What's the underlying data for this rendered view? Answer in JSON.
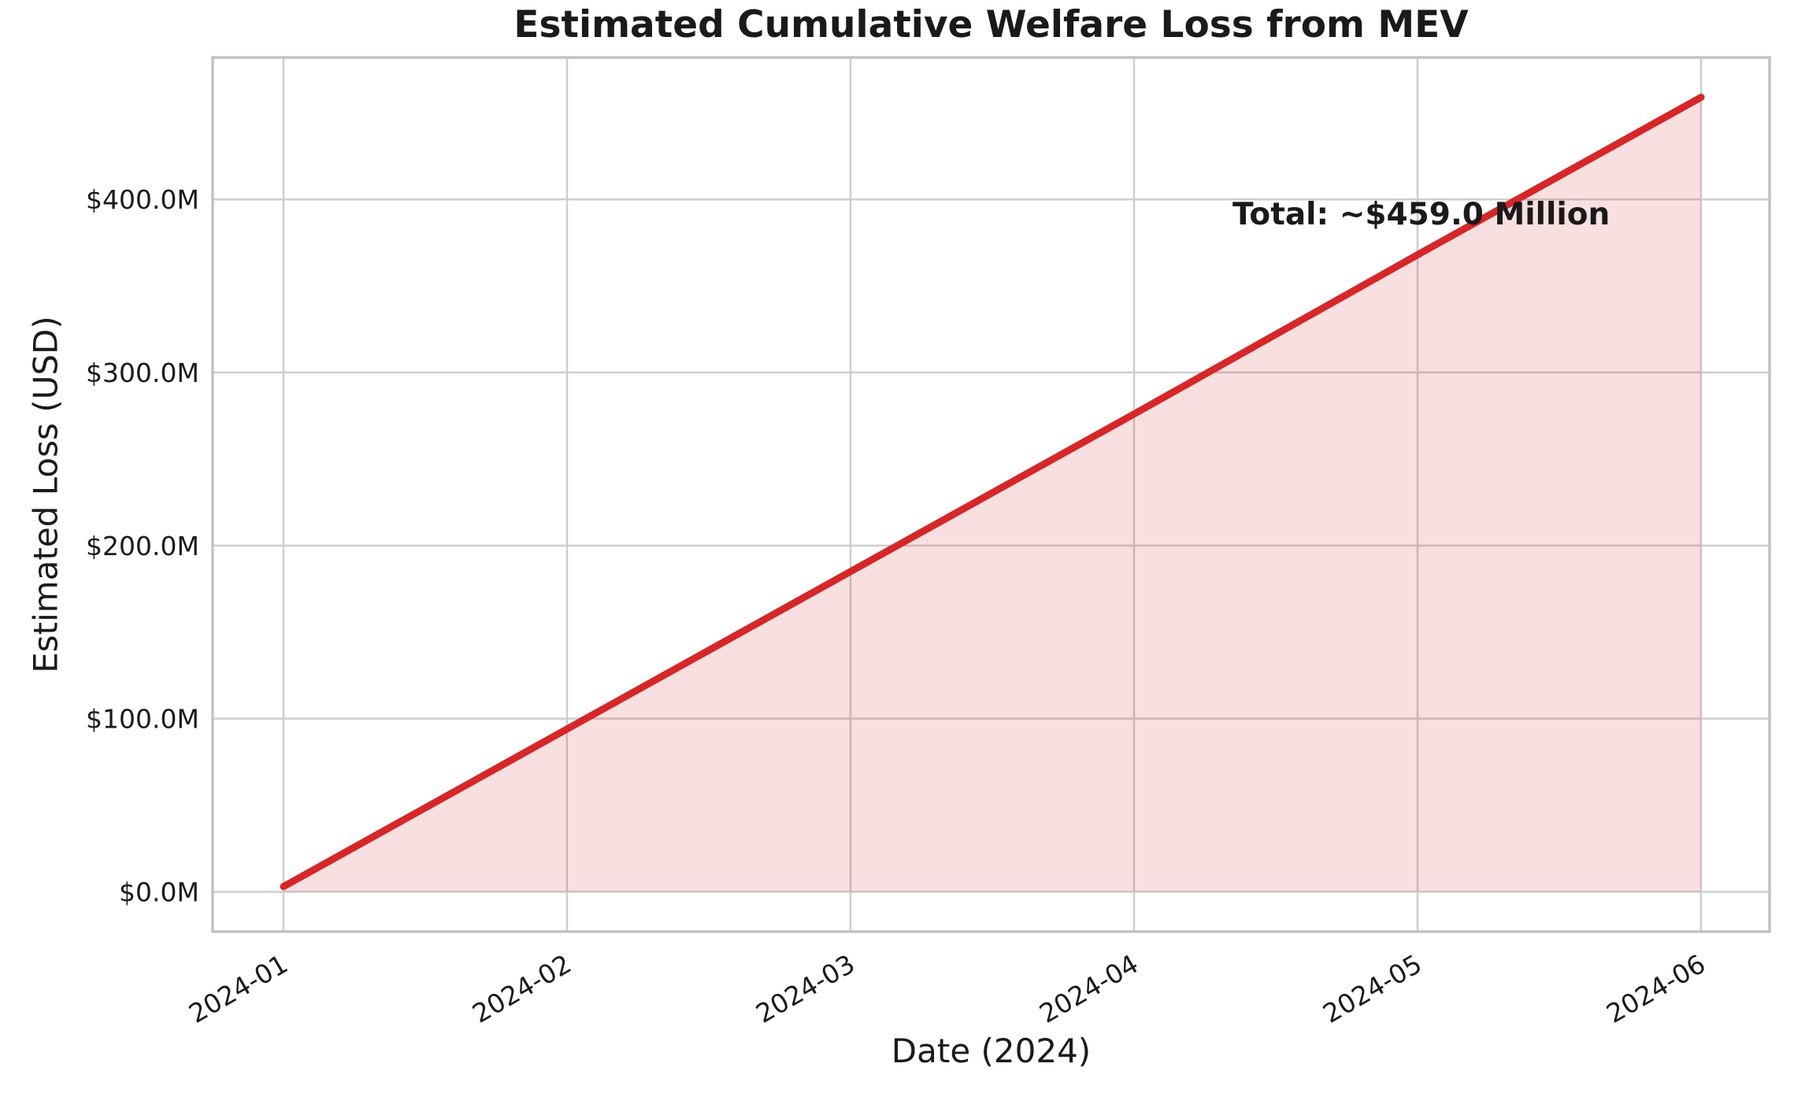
{
  "chart_data": {
    "type": "area",
    "title": "Estimated Cumulative Welfare Loss from MEV",
    "xlabel": "Date (2024)",
    "ylabel": "Estimated Loss (USD)",
    "annotation": "Total: ~$459.0 Million",
    "total_million_usd": 459.0,
    "categories": [
      "2024-01",
      "2024-02",
      "2024-03",
      "2024-04",
      "2024-05",
      "2024-06"
    ],
    "values": [
      3,
      94,
      185,
      276,
      368,
      459
    ],
    "yticks": {
      "values": [
        0,
        100,
        200,
        300,
        400
      ],
      "labels": [
        "$0.0M",
        "$100.0M",
        "$200.0M",
        "$300.0M",
        "$400.0M"
      ]
    },
    "ylim": [
      -23,
      482
    ],
    "baseline_value": 0,
    "grid": true,
    "legend": false,
    "x_tick_rotation_deg": 30,
    "colors": {
      "line": "#d62728",
      "fill": "rgba(214,39,40,0.15)",
      "grid": "#cdcdcd",
      "border": "#c2c2c2",
      "text": "#1a1a1a"
    }
  }
}
